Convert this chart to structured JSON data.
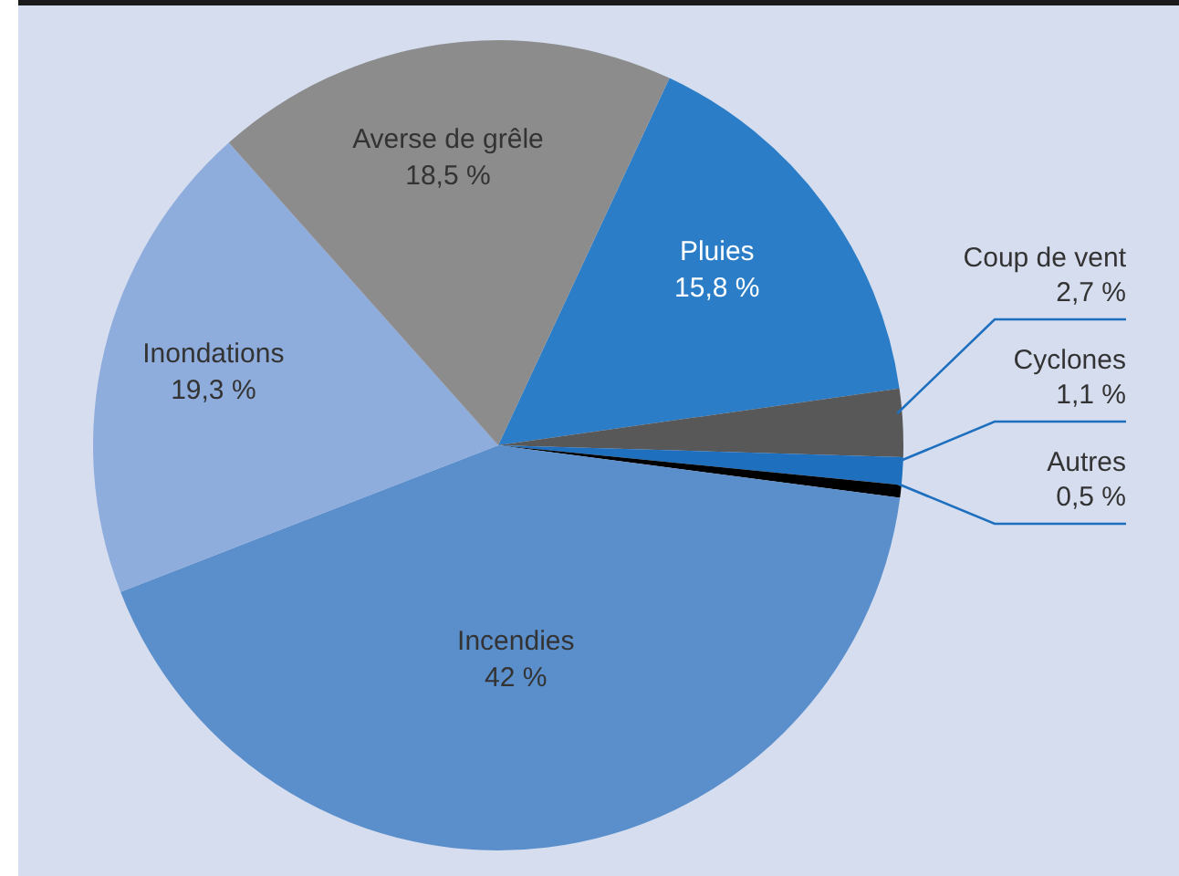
{
  "chart_data": {
    "type": "pie",
    "categories": [
      "Pluies",
      "Coup de vent",
      "Cyclones",
      "Autres",
      "Incendies",
      "Inondations",
      "Averse de grêle"
    ],
    "values": [
      15.8,
      2.7,
      1.1,
      0.5,
      42,
      19.3,
      18.5
    ],
    "value_labels": [
      "15,8 %",
      "2,7 %",
      "1,1 %",
      "0,5 %",
      "42 %",
      "19,3 %",
      "18,5 %"
    ],
    "colors": [
      "#2a7dc6",
      "#585858",
      "#1f6fbf",
      "#000000",
      "#5b8fcb",
      "#8eacdc",
      "#8c8c8c"
    ],
    "legend": false
  }
}
